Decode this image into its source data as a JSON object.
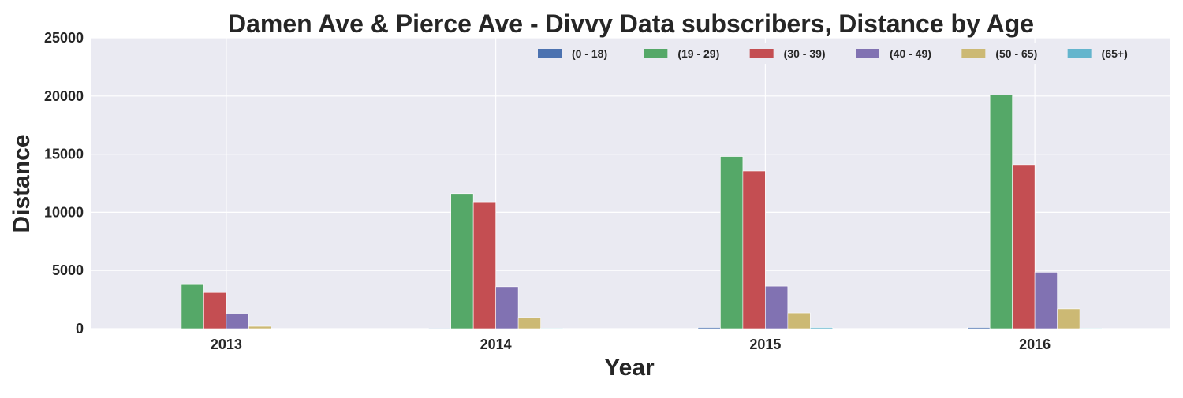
{
  "chart_data": {
    "type": "bar",
    "title": "Damen Ave & Pierce Ave - Divvy Data subscribers, Distance by Age",
    "xlabel": "Year",
    "ylabel": "Distance",
    "categories": [
      "2013",
      "2014",
      "2015",
      "2016"
    ],
    "ylim": [
      0,
      25000
    ],
    "yticks": [
      "0",
      "5000",
      "10000",
      "15000",
      "20000",
      "25000"
    ],
    "grid": true,
    "legend_position": "top-right",
    "colors": {
      "background": "#EAEAF2",
      "grid": "#FFFFFF",
      "text": "#262626"
    },
    "series": [
      {
        "name": "(0 - 18)",
        "color": "#4C72B0",
        "values": [
          0,
          50,
          100,
          100
        ]
      },
      {
        "name": "(19 - 29)",
        "color": "#55A868",
        "values": [
          3850,
          11600,
          14800,
          20100
        ]
      },
      {
        "name": "(30 - 39)",
        "color": "#C44E52",
        "values": [
          3100,
          10900,
          13550,
          14100
        ]
      },
      {
        "name": "(40 - 49)",
        "color": "#8172B2",
        "values": [
          1250,
          3600,
          3650,
          4850
        ]
      },
      {
        "name": "(50 - 65)",
        "color": "#CCB974",
        "values": [
          200,
          950,
          1350,
          1700
        ]
      },
      {
        "name": "(65+)",
        "color": "#64B5CD",
        "values": [
          0,
          50,
          100,
          50
        ]
      }
    ]
  }
}
